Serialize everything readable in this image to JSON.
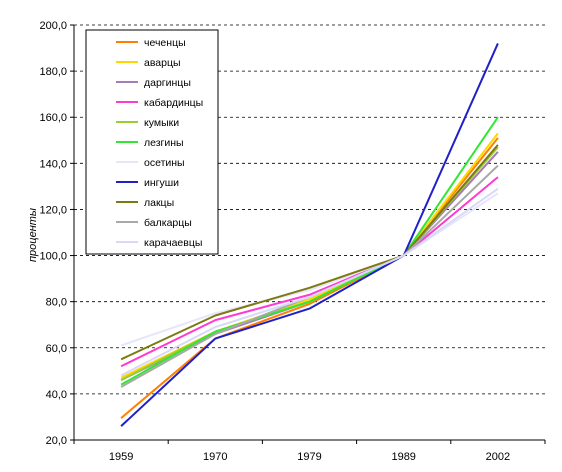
{
  "chart_data": {
    "type": "line",
    "title": "",
    "xlabel": "",
    "ylabel": "проценты",
    "categories": [
      "1959",
      "1970",
      "1979",
      "1989",
      "2002"
    ],
    "ylim": [
      20,
      200
    ],
    "ytick_step": 20,
    "ytick_labels": [
      "20,0",
      "40,0",
      "60,0",
      "80,0",
      "100,0",
      "120,0",
      "140,0",
      "160,0",
      "180,0",
      "200,0"
    ],
    "grid": "horizontal-dashed",
    "legend_position": "top-left",
    "series": [
      {
        "name": "чеченцы",
        "color": "#ff7f00",
        "values": [
          29.5,
          64,
          79,
          100,
          151
        ]
      },
      {
        "name": "аварцы",
        "color": "#ffd700",
        "values": [
          47,
          67,
          81,
          100,
          153
        ]
      },
      {
        "name": "даргинцы",
        "color": "#a67bb6",
        "values": [
          46,
          66,
          80,
          100,
          145
        ]
      },
      {
        "name": "кабардинцы",
        "color": "#ff3ad3",
        "values": [
          52,
          72,
          83,
          100,
          134
        ]
      },
      {
        "name": "кумыки",
        "color": "#9acd32",
        "values": [
          46,
          67,
          80,
          100,
          147
        ]
      },
      {
        "name": "лезгины",
        "color": "#33e633",
        "values": [
          44,
          67,
          80,
          100,
          160
        ]
      },
      {
        "name": "осетины",
        "color": "#e6e6fa",
        "values": [
          61,
          75,
          85,
          100,
          127
        ]
      },
      {
        "name": "ингуши",
        "color": "#2020c8",
        "values": [
          26,
          64,
          77,
          100,
          192
        ]
      },
      {
        "name": "лакцы",
        "color": "#7a7a10",
        "values": [
          55,
          74,
          86,
          100,
          148
        ]
      },
      {
        "name": "балкарцы",
        "color": "#a9a9a9",
        "values": [
          43,
          66,
          82,
          100,
          139
        ]
      },
      {
        "name": "карачаевцы",
        "color": "#d8d8f8",
        "values": [
          48,
          69,
          82,
          100,
          129
        ]
      }
    ]
  }
}
